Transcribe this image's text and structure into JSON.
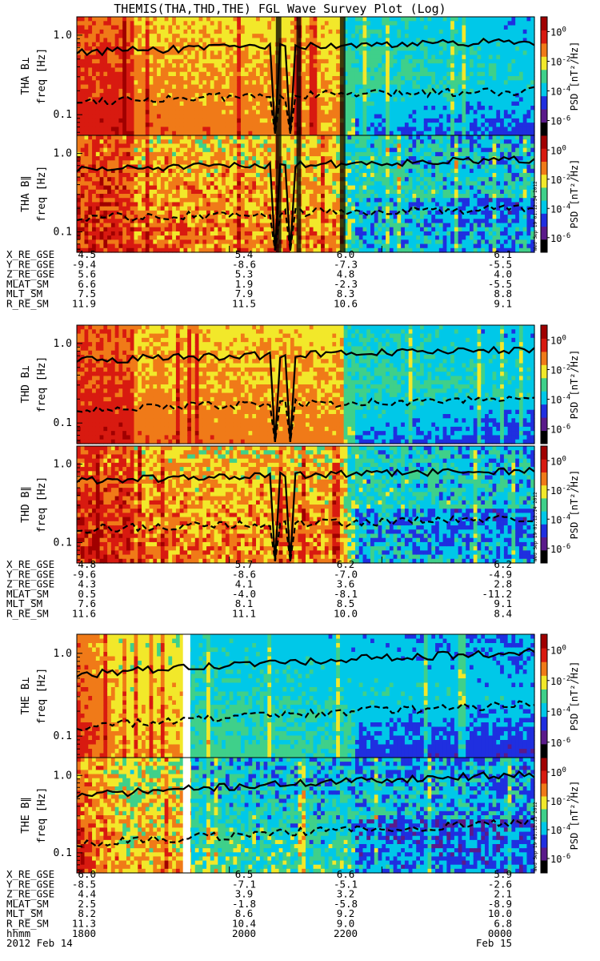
{
  "title": "THEMIS(THA,THD,THE) FGL Wave Survey Plot (Log)",
  "colors": {
    "black": "#000000",
    "purple": "#5a1a8a",
    "blue": "#1f2fe0",
    "cyan": "#00c8e8",
    "green": "#3fd08a",
    "yellow": "#f2e82a",
    "orange": "#f07a18",
    "red": "#d81a10",
    "darkred": "#a00000"
  },
  "chart_data": {
    "type": "heatmap",
    "x_axis": {
      "unit": "hhmm",
      "ticks": [
        "1800",
        "2000",
        "2200",
        "0000"
      ],
      "date_labels": [
        "2012  Feb 14",
        "Feb 15"
      ],
      "row_label": "hhmm"
    },
    "y_axis": {
      "scale": "log",
      "range_hz": [
        0.055,
        1.7
      ],
      "ticks": [
        0.1,
        1.0
      ],
      "tick_labels": [
        "0.1",
        "1.0"
      ]
    },
    "colorbar": {
      "scale": "log",
      "range": [
        1e-07,
        10
      ],
      "tick_exponents": [
        0,
        -2,
        -4,
        -6
      ],
      "label": "PSD [nT²/Hz]"
    },
    "probes": [
      {
        "id": "THA",
        "panels": [
          {
            "name": "THA B⊥",
            "ylabel": "freq [Hz]",
            "stamp": ""
          },
          {
            "name": "THA B∥",
            "ylabel": "freq [Hz]",
            "stamp": "Wed Sep 19 01:12:14 2012"
          }
        ],
        "ephemeris": {
          "labels": [
            "X_RE_GSE",
            "Y_RE_GSE",
            "Z_RE_GSE",
            "MLAT_SM",
            "MLT_SM",
            "R_RE_SM"
          ],
          "columns": [
            [
              "4.5",
              "-9.4",
              "5.6",
              "6.6",
              "7.5",
              "11.9"
            ],
            [
              "5.4",
              "-8.6",
              "5.3",
              "1.9",
              "7.9",
              "11.5"
            ],
            [
              "6.0",
              "-7.3",
              "4.8",
              "-2.3",
              "8.3",
              "10.6"
            ],
            [
              "6.1",
              "-5.5",
              "4.0",
              "-5.5",
              "8.8",
              "9.1"
            ]
          ]
        }
      },
      {
        "id": "THD",
        "panels": [
          {
            "name": "THD B⊥",
            "ylabel": "freq [Hz]",
            "stamp": ""
          },
          {
            "name": "THD B∥",
            "ylabel": "freq [Hz]",
            "stamp": "Wed Sep 19 01:12:14 2012"
          }
        ],
        "ephemeris": {
          "labels": [
            "X_RE_GSE",
            "Y_RE_GSE",
            "Z_RE_GSE",
            "MLAT_SM",
            "MLT_SM",
            "R_RE_SM"
          ],
          "columns": [
            [
              "4.8",
              "-9.6",
              "4.3",
              "0.5",
              "7.6",
              "11.6"
            ],
            [
              "5.7",
              "-8.6",
              "4.1",
              "-4.0",
              "8.1",
              "11.1"
            ],
            [
              "6.2",
              "-7.0",
              "3.6",
              "-8.1",
              "8.5",
              "10.0"
            ],
            [
              "6.2",
              "-4.9",
              "2.8",
              "-11.2",
              "9.1",
              "8.4"
            ]
          ]
        }
      },
      {
        "id": "THE",
        "panels": [
          {
            "name": "THE B⊥",
            "ylabel": "freq [Hz]",
            "stamp": ""
          },
          {
            "name": "THE B∥",
            "ylabel": "freq [Hz]",
            "stamp": "Wed Sep 19 01:12:15 2012"
          }
        ],
        "ephemeris": {
          "labels": [
            "X_RE_GSE",
            "Y_RE_GSE",
            "Z_RE_GSE",
            "MLAT_SM",
            "MLT_SM",
            "R_RE_SM"
          ],
          "columns": [
            [
              "6.0",
              "-8.5",
              "4.4",
              "2.5",
              "8.2",
              "11.3"
            ],
            [
              "6.5",
              "-7.1",
              "3.9",
              "-1.8",
              "8.6",
              "10.4"
            ],
            [
              "6.6",
              "-5.1",
              "3.2",
              "-5.8",
              "9.2",
              "9.0"
            ],
            [
              "5.9",
              "-2.6",
              "2.1",
              "-8.9",
              "10.0",
              "6.8"
            ]
          ]
        }
      }
    ]
  }
}
